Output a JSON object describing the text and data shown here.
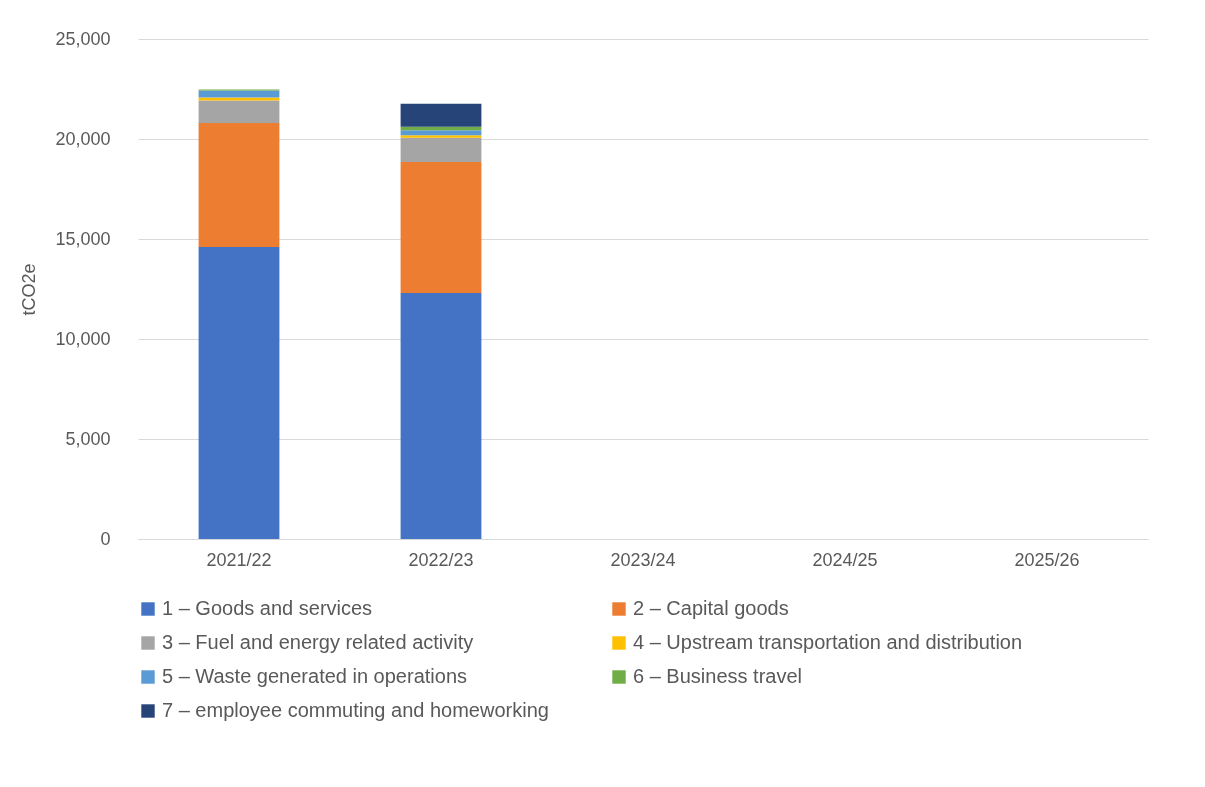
{
  "chart_data": {
    "type": "bar",
    "stacked": true,
    "ylabel": "tCO2e",
    "categories": [
      "2021/22",
      "2022/23",
      "2023/24",
      "2024/25",
      "2025/26"
    ],
    "series": [
      {
        "name": "1 – Goods and services",
        "color": "#4472c4",
        "values": [
          14600,
          12300,
          null,
          null,
          null
        ]
      },
      {
        "name": "2 – Capital goods",
        "color": "#ed7d31",
        "values": [
          6200,
          6550,
          null,
          null,
          null
        ]
      },
      {
        "name": "3 – Fuel and energy related activity",
        "color": "#a5a5a5",
        "values": [
          1130,
          1210,
          null,
          null,
          null
        ]
      },
      {
        "name": "4 – Upstream transportation and distribution",
        "color": "#ffc000",
        "values": [
          150,
          130,
          null,
          null,
          null
        ]
      },
      {
        "name": "5 – Waste generated in operations",
        "color": "#5b9bd5",
        "values": [
          350,
          250,
          null,
          null,
          null
        ]
      },
      {
        "name": "6 – Business travel",
        "color": "#70ad47",
        "values": [
          50,
          170,
          null,
          null,
          null
        ]
      },
      {
        "name": "7 – employee commuting and homeworking",
        "color": "#264478",
        "values": [
          null,
          1150,
          null,
          null,
          null
        ]
      }
    ],
    "ylim": [
      0,
      25000
    ],
    "yticks": [
      {
        "value": 0,
        "label": "0"
      },
      {
        "value": 5000,
        "label": "5,000"
      },
      {
        "value": 10000,
        "label": "10,000"
      },
      {
        "value": 15000,
        "label": "15,000"
      },
      {
        "value": 20000,
        "label": "20,000"
      },
      {
        "value": 25000,
        "label": "25,000"
      }
    ],
    "grid": "y",
    "legend": "bottom"
  }
}
